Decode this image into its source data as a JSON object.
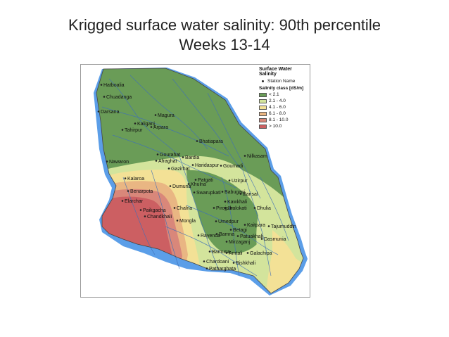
{
  "title": {
    "line1": "Krigged surface water salinity: 90th percentile",
    "line2": "Weeks 13-14"
  },
  "legend": {
    "heading": "Surface Water Salinity",
    "station_label": "Station Name",
    "subheading": "Salinity class [dS/m]",
    "classes": [
      {
        "label": "< 2.1",
        "color": "#6a9c57"
      },
      {
        "label": "2.1 - 4.0",
        "color": "#d3e49c"
      },
      {
        "label": "4.1 - 6.0",
        "color": "#f3e196"
      },
      {
        "label": "6.1 - 8.0",
        "color": "#e9b683"
      },
      {
        "label": "8.1 - 10.0",
        "color": "#d9877a"
      },
      {
        "label": "> 10.0",
        "color": "#cc5f62"
      }
    ],
    "water_color": "#5b9ee8"
  },
  "stations": [
    "Hatboalia",
    "Chuadanga",
    "Darsana",
    "Magura",
    "Kaliganj",
    "Tahirpur",
    "Arpara",
    "Bhatiapara",
    "Gourahat",
    "Afraghat",
    "Bardia",
    "Haridaspur",
    "Gazirhat",
    "Goumadi",
    "Nilkasam",
    "Nawaron",
    "Kalaroa",
    "Benarpota",
    "Elarchar",
    "Dumuria",
    "Khulna",
    "Swarupkati",
    "Patgati",
    "Uzirpur",
    "Babuganj",
    "Barisal",
    "Kawkhali",
    "Jhalokati",
    "Dhulia",
    "Paikgacha",
    "Chandkhali",
    "Chalna",
    "Mongla",
    "Pirojpur",
    "Umedpur",
    "Betagi",
    "Patuakhali",
    "Tajumuddin",
    "Kaitpara",
    "Rayenda",
    "Bamna",
    "Mirzaganj",
    "Dasmunia",
    "Bamuna",
    "Amtali",
    "Galachipa",
    "Chardoani",
    "Patharghata",
    "Bishkhali"
  ]
}
